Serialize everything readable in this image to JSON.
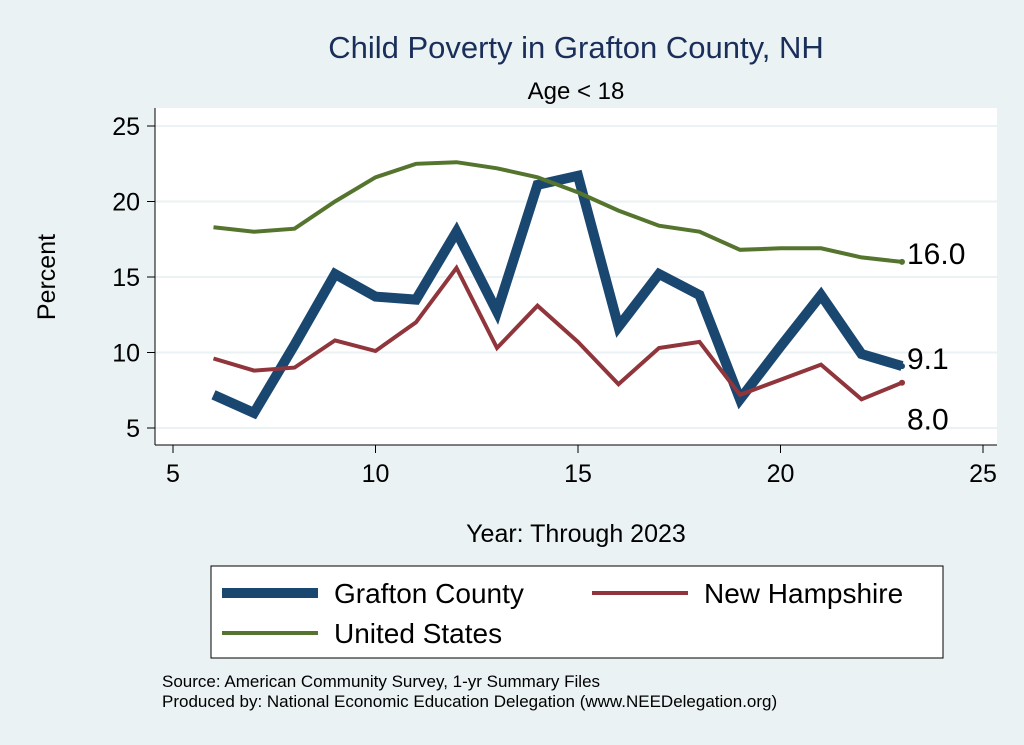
{
  "chart_data": {
    "type": "line",
    "title": "Child Poverty in Grafton County, NH",
    "subtitle": "Age < 18",
    "xlabel": "Year: Through 2023",
    "ylabel": "Percent",
    "xlim": [
      5,
      25
    ],
    "ylim": [
      5,
      25
    ],
    "xticks": [
      5,
      10,
      15,
      20,
      25
    ],
    "yticks": [
      5,
      10,
      15,
      20,
      25
    ],
    "grid": "horizontal",
    "legend_position": "bottom",
    "series": [
      {
        "name": "Grafton County",
        "color": "#1a476f",
        "x": [
          6,
          7,
          8,
          9,
          10,
          11,
          12,
          13,
          14,
          15,
          16,
          17,
          18,
          19,
          20,
          21,
          22,
          23
        ],
        "y": [
          7.2,
          6.0,
          10.5,
          15.2,
          13.7,
          13.5,
          18.0,
          12.7,
          21.1,
          21.7,
          11.7,
          15.2,
          13.8,
          6.9,
          10.4,
          13.8,
          9.9,
          9.1
        ],
        "end_label": "9.1"
      },
      {
        "name": "New Hampshire",
        "color": "#90353b",
        "x": [
          6,
          7,
          8,
          9,
          10,
          11,
          12,
          13,
          14,
          15,
          16,
          17,
          18,
          19,
          20,
          21,
          22,
          23
        ],
        "y": [
          9.6,
          8.8,
          9.0,
          10.8,
          10.1,
          12.0,
          15.6,
          10.3,
          13.1,
          10.7,
          7.9,
          10.3,
          10.7,
          7.2,
          8.2,
          9.2,
          6.9,
          8.0
        ],
        "end_label": "8.0"
      },
      {
        "name": "United States",
        "color": "#55752f",
        "x": [
          6,
          7,
          8,
          9,
          10,
          11,
          12,
          13,
          14,
          15,
          16,
          17,
          18,
          19,
          20,
          21,
          22,
          23
        ],
        "y": [
          18.3,
          18.0,
          18.2,
          20.0,
          21.6,
          22.5,
          22.6,
          22.2,
          21.6,
          20.6,
          19.4,
          18.4,
          18.0,
          16.8,
          16.9,
          16.9,
          16.3,
          16.0
        ],
        "end_label": "16.0"
      }
    ],
    "notes": [
      "Source: American Community Survey, 1-yr Summary Files",
      "Produced by: National Economic Education Delegation (www.NEEDelegation.org)"
    ]
  }
}
